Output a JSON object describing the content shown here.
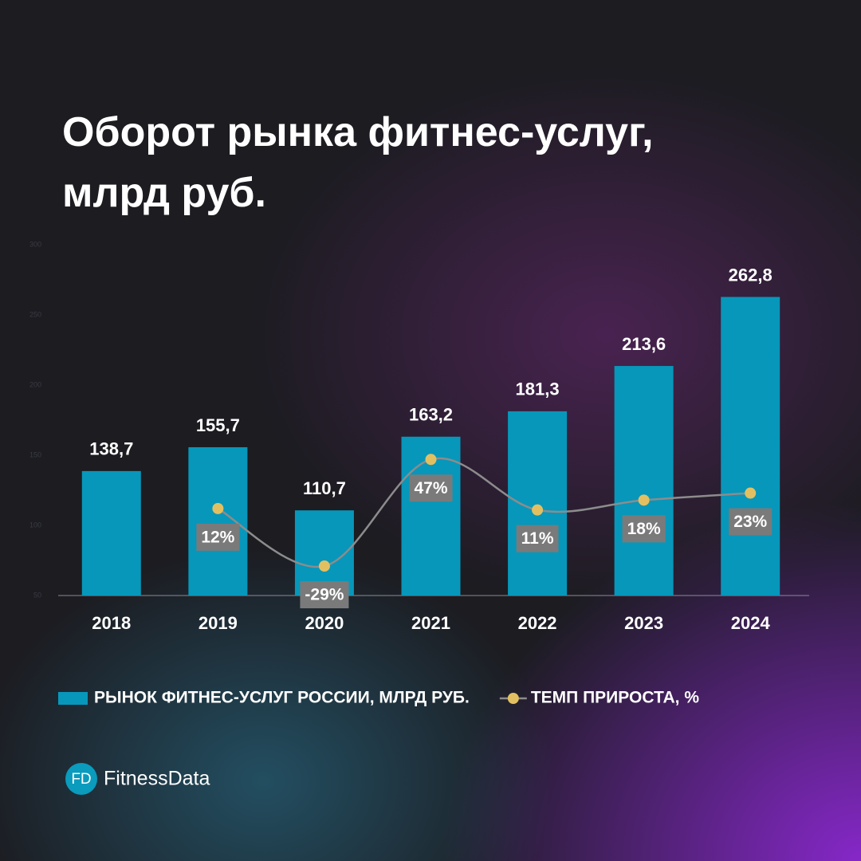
{
  "chart_data": {
    "type": "bar",
    "title": "Оборот рынка фитнес-услуг, млрд руб.",
    "categories": [
      "2018",
      "2019",
      "2020",
      "2021",
      "2022",
      "2023",
      "2024"
    ],
    "series": [
      {
        "name": "РЫНОК ФИТНЕС-УСЛУГ РОССИИ, МЛРД РУБ.",
        "type": "bar",
        "color": "#0797ba",
        "values": [
          138.7,
          155.7,
          110.7,
          163.2,
          181.3,
          213.6,
          262.8
        ],
        "value_labels": [
          "138,7",
          "155,7",
          "110,7",
          "163,2",
          "181,3",
          "213,6",
          "262,8"
        ]
      },
      {
        "name": "ТЕМП ПРИРОСТА, %",
        "type": "line",
        "axis": "y2",
        "color": "#8c8c8c",
        "marker_color": "#e2c062",
        "values": [
          null,
          12,
          -29,
          47,
          11,
          18,
          23
        ],
        "value_labels": [
          null,
          "12%",
          "-29%",
          "47%",
          "11%",
          "18%",
          "23%"
        ]
      }
    ],
    "ylim": [
      50,
      300
    ],
    "yticks": [
      50,
      100,
      150,
      200,
      250,
      300
    ],
    "y2lim": [
      -50,
      200
    ]
  },
  "footer": {
    "badge": "FD",
    "brand": "FitnessData"
  }
}
